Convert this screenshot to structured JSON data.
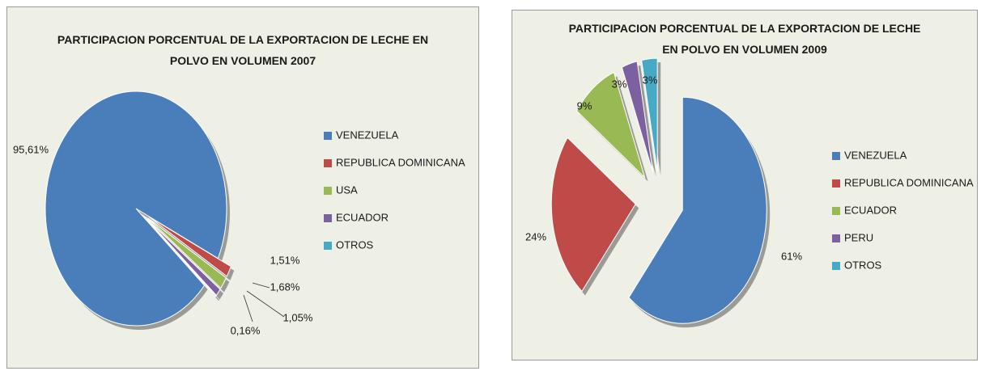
{
  "chart_data": [
    {
      "type": "pie",
      "title": "PARTICIPACION  PORCENTUAL DE LA EXPORTACION DE LECHE EN POLVO EN VOLUMEN  2007",
      "categories": [
        "VENEZUELA",
        "REPUBLICA DOMINICANA",
        "USA",
        "ECUADOR",
        "OTROS"
      ],
      "values": [
        95.61,
        1.51,
        1.68,
        1.05,
        0.16
      ],
      "value_labels": [
        "95,61%",
        "1,51%",
        "1,68%",
        "1,05%",
        "0,16%"
      ],
      "colors": [
        "#4a7ebb",
        "#be4b48",
        "#98b954",
        "#7d60a0",
        "#46aac5"
      ],
      "legend": "right"
    },
    {
      "type": "pie",
      "title": "PARTICIPACION  PORCENTUAL DE LA EXPORTACION DE LECHE EN POLVO EN VOLUMEN 2009",
      "categories": [
        "VENEZUELA",
        "REPUBLICA DOMINICANA",
        "ECUADOR",
        "PERU",
        "OTROS"
      ],
      "values": [
        61,
        24,
        9,
        3,
        3
      ],
      "value_labels": [
        "61%",
        "24%",
        "9%",
        "3%",
        "3%"
      ],
      "colors": [
        "#4a7ebb",
        "#be4b48",
        "#98b954",
        "#7d60a0",
        "#46aac5"
      ],
      "legend": "right"
    }
  ]
}
